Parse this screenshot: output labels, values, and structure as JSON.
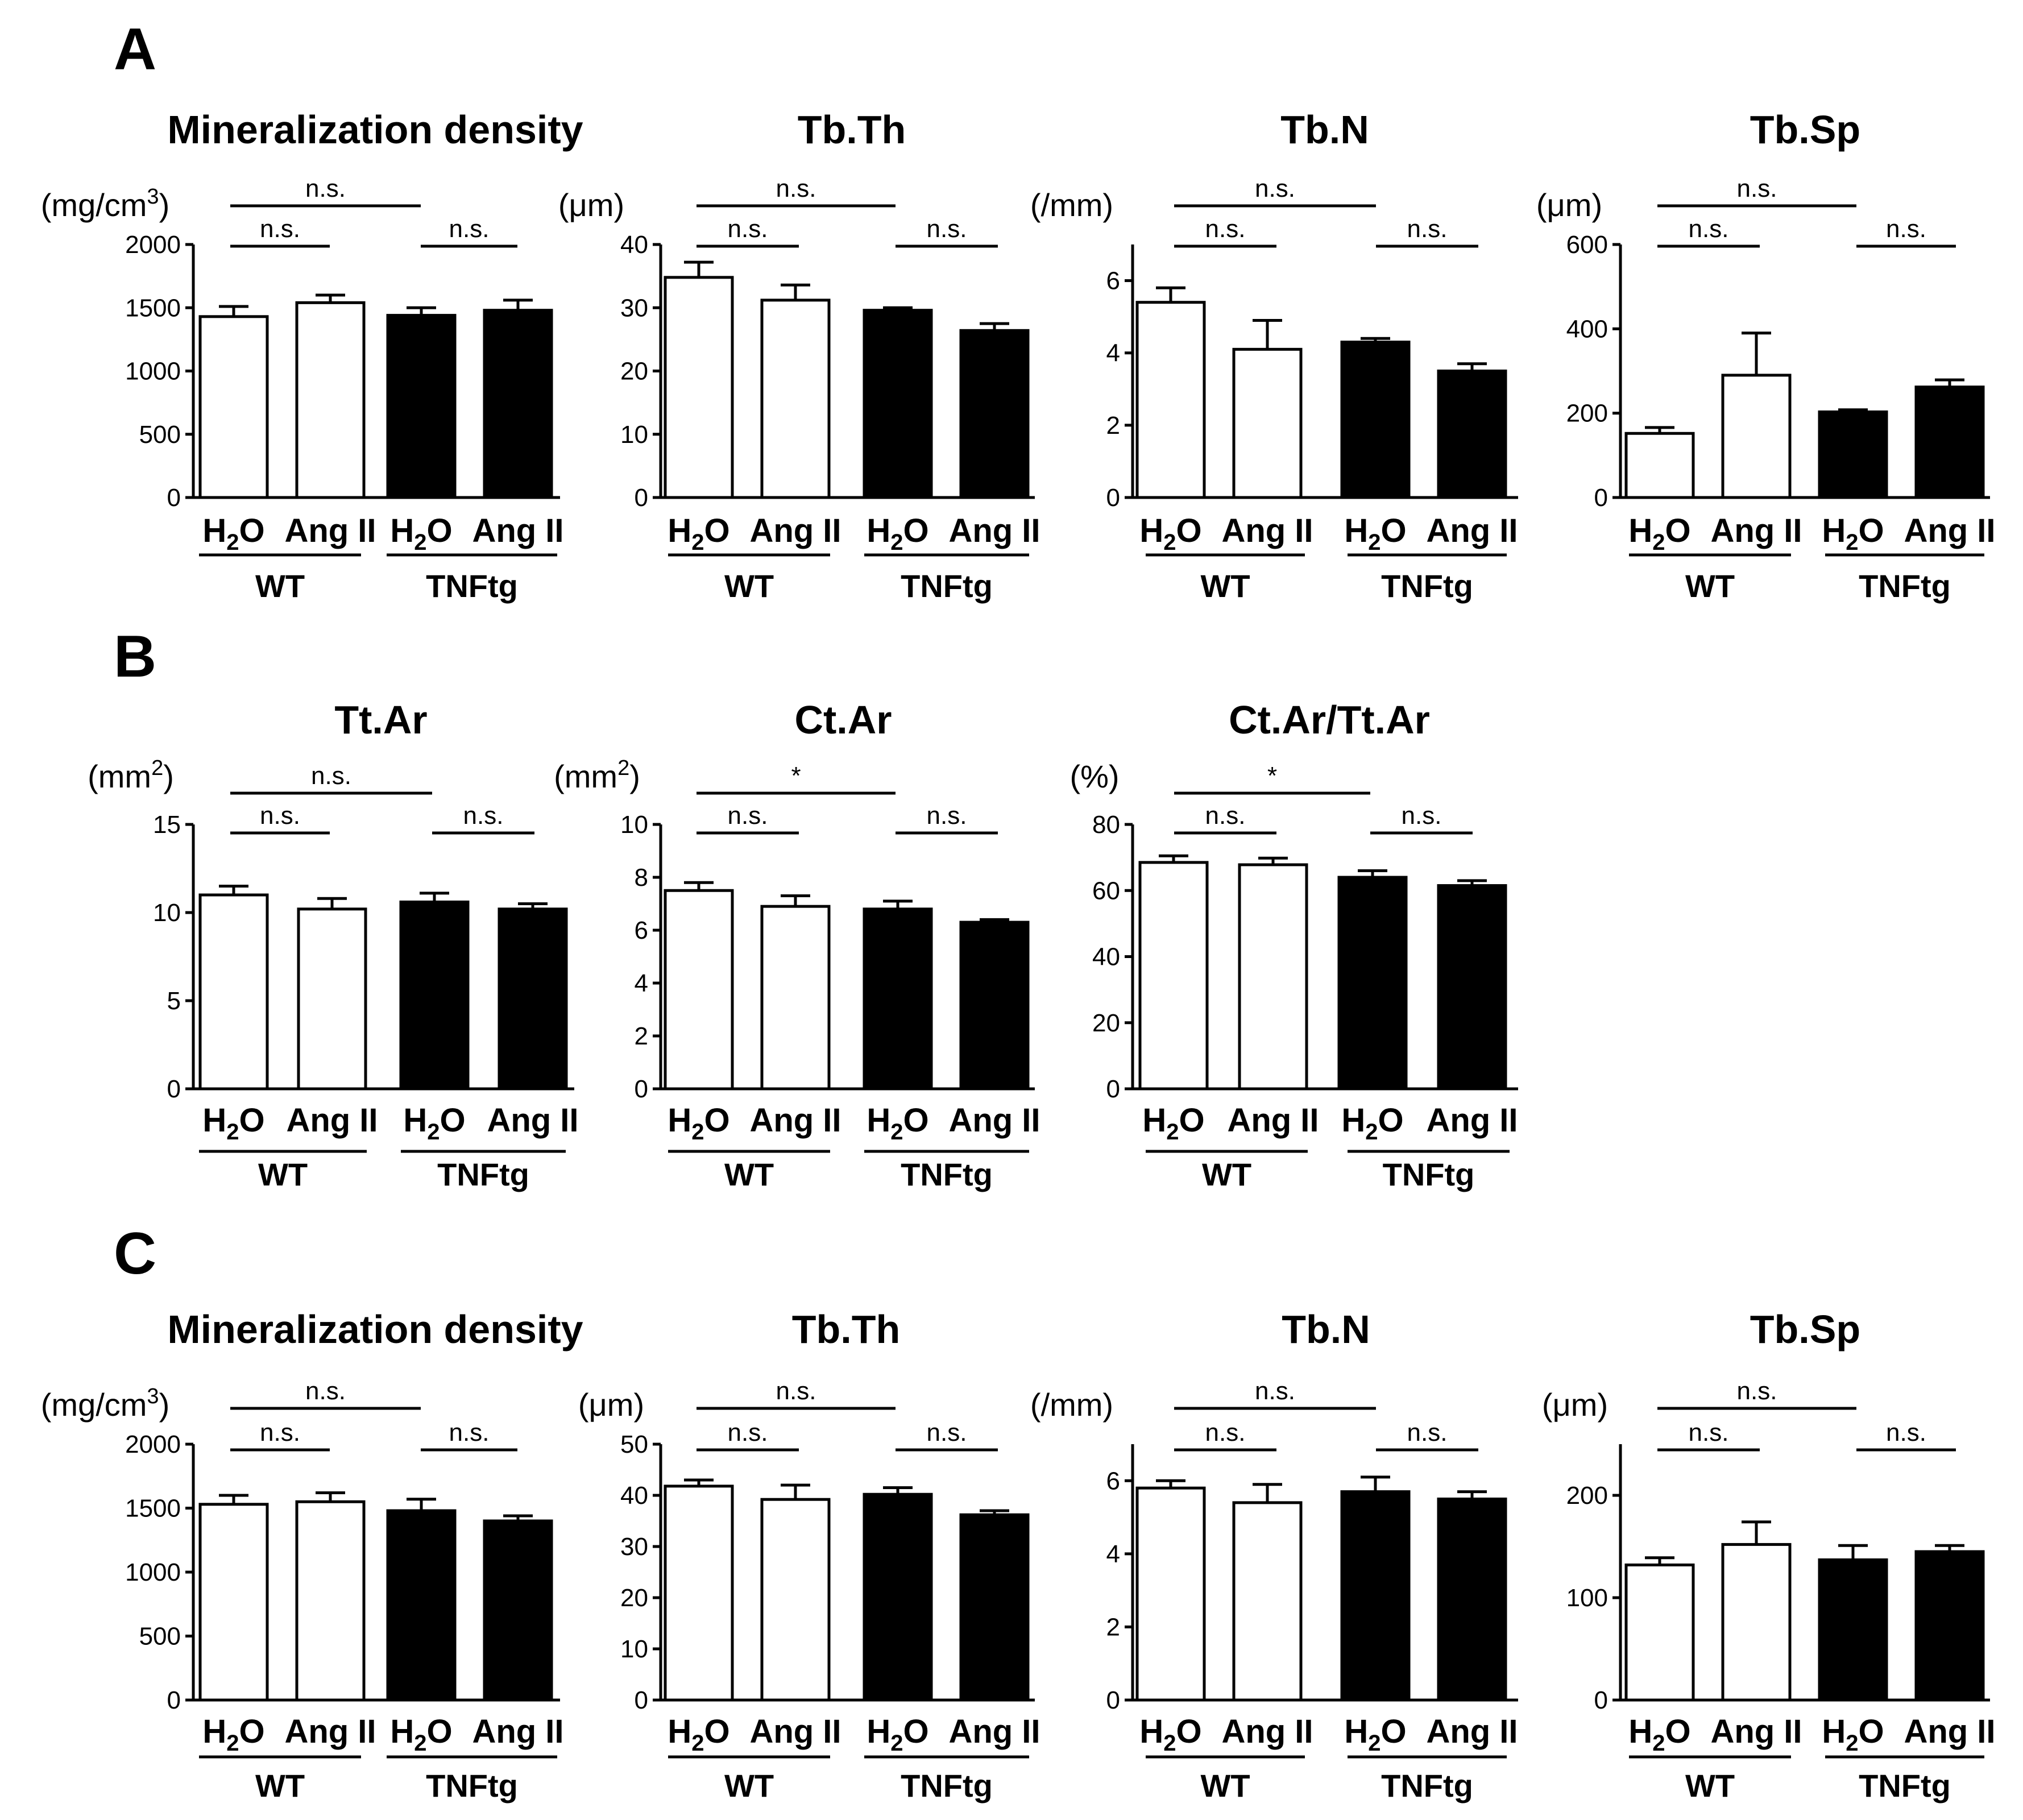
{
  "panels": [
    {
      "label": "A"
    },
    {
      "label": "B"
    },
    {
      "label": "C"
    }
  ],
  "chart_data": [
    {
      "type": "bar",
      "panel": "A",
      "title": "Mineralization density",
      "ylabel": "(mg/cm",
      "ylabel_sup": "3",
      "ylabel_tail": ")",
      "categories": [
        "H2O",
        "Ang II",
        "H2O",
        "Ang II"
      ],
      "groups": [
        "WT",
        "TNFtg"
      ],
      "values": [
        1430,
        1540,
        1440,
        1480
      ],
      "errors": [
        80,
        60,
        60,
        80
      ],
      "ylim": [
        0,
        2000
      ],
      "yticks": [
        0,
        500,
        1000,
        1500,
        2000
      ],
      "ytick_labels": [
        "0",
        "500",
        "1000",
        "1500",
        "2000"
      ],
      "bar_colors": [
        "#ffffff",
        "#ffffff",
        "#000000",
        "#000000"
      ],
      "comparisons": [
        {
          "label": "n.s."
        },
        {
          "label": "n.s."
        },
        {
          "label": "n.s."
        }
      ]
    },
    {
      "type": "bar",
      "panel": "A",
      "title": "Tb.Th",
      "ylabel": "(μm)",
      "ylabel_sup": "",
      "ylabel_tail": "",
      "categories": [
        "H2O",
        "Ang II",
        "H2O",
        "Ang II"
      ],
      "groups": [
        "WT",
        "TNFtg"
      ],
      "values": [
        34.8,
        31.2,
        29.6,
        26.4
      ],
      "errors": [
        2.4,
        2.4,
        0.4,
        1.1
      ],
      "ylim": [
        0,
        40
      ],
      "yticks": [
        0,
        10,
        20,
        30,
        40
      ],
      "ytick_labels": [
        "0",
        "10",
        "20",
        "30",
        "40"
      ],
      "bar_colors": [
        "#ffffff",
        "#ffffff",
        "#000000",
        "#000000"
      ],
      "comparisons": [
        {
          "label": "n.s."
        },
        {
          "label": "n.s."
        },
        {
          "label": "n.s."
        }
      ]
    },
    {
      "type": "bar",
      "panel": "A",
      "title": "Tb.N",
      "ylabel": "(/mm)",
      "ylabel_sup": "",
      "ylabel_tail": "",
      "categories": [
        "H2O",
        "Ang II",
        "H2O",
        "Ang II"
      ],
      "groups": [
        "WT",
        "TNFtg"
      ],
      "values": [
        5.4,
        4.1,
        4.3,
        3.5
      ],
      "errors": [
        0.4,
        0.8,
        0.1,
        0.2
      ],
      "ylim": [
        0,
        7
      ],
      "yticks": [
        0,
        2,
        4,
        6
      ],
      "ytick_labels": [
        "0",
        "2",
        "4",
        "6"
      ],
      "bar_colors": [
        "#ffffff",
        "#ffffff",
        "#000000",
        "#000000"
      ],
      "comparisons": [
        {
          "label": "n.s."
        },
        {
          "label": "n.s."
        },
        {
          "label": "n.s."
        }
      ]
    },
    {
      "type": "bar",
      "panel": "A",
      "title": "Tb.Sp",
      "ylabel": "(μm)",
      "ylabel_sup": "",
      "ylabel_tail": "",
      "categories": [
        "H2O",
        "Ang II",
        "H2O",
        "Ang II"
      ],
      "groups": [
        "WT",
        "TNFtg"
      ],
      "values": [
        152,
        290,
        203,
        262
      ],
      "errors": [
        14,
        100,
        5,
        17
      ],
      "ylim": [
        0,
        600
      ],
      "yticks": [
        0,
        200,
        400,
        600
      ],
      "ytick_labels": [
        "0",
        "200",
        "400",
        "600"
      ],
      "bar_colors": [
        "#ffffff",
        "#ffffff",
        "#000000",
        "#000000"
      ],
      "comparisons": [
        {
          "label": "n.s."
        },
        {
          "label": "n.s."
        },
        {
          "label": "n.s."
        }
      ]
    },
    {
      "type": "bar",
      "panel": "B",
      "title": "Tt.Ar",
      "ylabel": "(mm",
      "ylabel_sup": "2",
      "ylabel_tail": ")",
      "categories": [
        "H2O",
        "Ang II",
        "H2O",
        "Ang II"
      ],
      "groups": [
        "WT",
        "TNFtg"
      ],
      "values": [
        11.0,
        10.2,
        10.6,
        10.2
      ],
      "errors": [
        0.5,
        0.6,
        0.5,
        0.3
      ],
      "ylim": [
        0,
        15
      ],
      "yticks": [
        0,
        5,
        10,
        15
      ],
      "ytick_labels": [
        "0",
        "5",
        "10",
        "15"
      ],
      "bar_colors": [
        "#ffffff",
        "#ffffff",
        "#000000",
        "#000000"
      ],
      "comparisons": [
        {
          "label": "n.s."
        },
        {
          "label": "n.s."
        },
        {
          "label": "n.s."
        }
      ]
    },
    {
      "type": "bar",
      "panel": "B",
      "title": "Ct.Ar",
      "ylabel": "(mm",
      "ylabel_sup": "2",
      "ylabel_tail": ")",
      "categories": [
        "H2O",
        "Ang II",
        "H2O",
        "Ang II"
      ],
      "groups": [
        "WT",
        "TNFtg"
      ],
      "values": [
        7.5,
        6.9,
        6.8,
        6.3
      ],
      "errors": [
        0.3,
        0.4,
        0.3,
        0.1
      ],
      "ylim": [
        0,
        10
      ],
      "yticks": [
        0,
        2,
        4,
        6,
        8,
        10
      ],
      "ytick_labels": [
        "0",
        "2",
        "4",
        "6",
        "8",
        "10"
      ],
      "bar_colors": [
        "#ffffff",
        "#ffffff",
        "#000000",
        "#000000"
      ],
      "comparisons": [
        {
          "label": "*"
        },
        {
          "label": "n.s."
        },
        {
          "label": "n.s."
        }
      ]
    },
    {
      "type": "bar",
      "panel": "B",
      "title": "Ct.Ar/Tt.Ar",
      "ylabel": "(%)",
      "ylabel_sup": "",
      "ylabel_tail": "",
      "categories": [
        "H2O",
        "Ang II",
        "H2O",
        "Ang II"
      ],
      "groups": [
        "WT",
        "TNFtg"
      ],
      "values": [
        68.5,
        67.8,
        64.0,
        61.5
      ],
      "errors": [
        2.0,
        2.0,
        2.0,
        1.5
      ],
      "ylim": [
        0,
        80
      ],
      "yticks": [
        0,
        20,
        40,
        60,
        80
      ],
      "ytick_labels": [
        "0",
        "20",
        "40",
        "60",
        "80"
      ],
      "bar_colors": [
        "#ffffff",
        "#ffffff",
        "#000000",
        "#000000"
      ],
      "comparisons": [
        {
          "label": "*"
        },
        {
          "label": "n.s."
        },
        {
          "label": "n.s."
        }
      ]
    },
    {
      "type": "bar",
      "panel": "C",
      "title": "Mineralization density",
      "ylabel": "(mg/cm",
      "ylabel_sup": "3",
      "ylabel_tail": ")",
      "categories": [
        "H2O",
        "Ang II",
        "H2O",
        "Ang II"
      ],
      "groups": [
        "WT",
        "TNFtg"
      ],
      "values": [
        1530,
        1550,
        1480,
        1400
      ],
      "errors": [
        70,
        70,
        90,
        40
      ],
      "ylim": [
        0,
        2000
      ],
      "yticks": [
        0,
        500,
        1000,
        1500,
        2000
      ],
      "ytick_labels": [
        "0",
        "500",
        "1000",
        "1500",
        "2000"
      ],
      "bar_colors": [
        "#ffffff",
        "#ffffff",
        "#000000",
        "#000000"
      ],
      "comparisons": [
        {
          "label": "n.s."
        },
        {
          "label": "n.s."
        },
        {
          "label": "n.s."
        }
      ]
    },
    {
      "type": "bar",
      "panel": "C",
      "title": "Tb.Th",
      "ylabel": "(μm)",
      "ylabel_sup": "",
      "ylabel_tail": "",
      "categories": [
        "H2O",
        "Ang II",
        "H2O",
        "Ang II"
      ],
      "groups": [
        "WT",
        "TNFtg"
      ],
      "values": [
        41.8,
        39.2,
        40.2,
        36.2
      ],
      "errors": [
        1.2,
        2.8,
        1.3,
        0.8
      ],
      "ylim": [
        0,
        50
      ],
      "yticks": [
        0,
        10,
        20,
        30,
        40,
        50
      ],
      "ytick_labels": [
        "0",
        "10",
        "20",
        "30",
        "40",
        "50"
      ],
      "bar_colors": [
        "#ffffff",
        "#ffffff",
        "#000000",
        "#000000"
      ],
      "comparisons": [
        {
          "label": "n.s."
        },
        {
          "label": "n.s."
        },
        {
          "label": "n.s."
        }
      ]
    },
    {
      "type": "bar",
      "panel": "C",
      "title": "Tb.N",
      "ylabel": "(/mm)",
      "ylabel_sup": "",
      "ylabel_tail": "",
      "categories": [
        "H2O",
        "Ang II",
        "H2O",
        "Ang II"
      ],
      "groups": [
        "WT",
        "TNFtg"
      ],
      "values": [
        5.8,
        5.4,
        5.7,
        5.5
      ],
      "errors": [
        0.2,
        0.5,
        0.4,
        0.2
      ],
      "ylim": [
        0,
        7
      ],
      "yticks": [
        0,
        2,
        4,
        6
      ],
      "ytick_labels": [
        "0",
        "2",
        "4",
        "6"
      ],
      "bar_colors": [
        "#ffffff",
        "#ffffff",
        "#000000",
        "#000000"
      ],
      "comparisons": [
        {
          "label": "n.s."
        },
        {
          "label": "n.s."
        },
        {
          "label": "n.s."
        }
      ]
    },
    {
      "type": "bar",
      "panel": "C",
      "title": "Tb.Sp",
      "ylabel": "(μm)",
      "ylabel_sup": "",
      "ylabel_tail": "",
      "categories": [
        "H2O",
        "Ang II",
        "H2O",
        "Ang II"
      ],
      "groups": [
        "WT",
        "TNFtg"
      ],
      "values": [
        132,
        152,
        137,
        145
      ],
      "errors": [
        7,
        22,
        14,
        6
      ],
      "ylim": [
        0,
        250
      ],
      "yticks": [
        0,
        100,
        200
      ],
      "ytick_labels": [
        "0",
        "100",
        "200"
      ],
      "bar_colors": [
        "#ffffff",
        "#ffffff",
        "#000000",
        "#000000"
      ],
      "comparisons": [
        {
          "label": "n.s."
        },
        {
          "label": "n.s."
        },
        {
          "label": "n.s."
        }
      ]
    }
  ]
}
